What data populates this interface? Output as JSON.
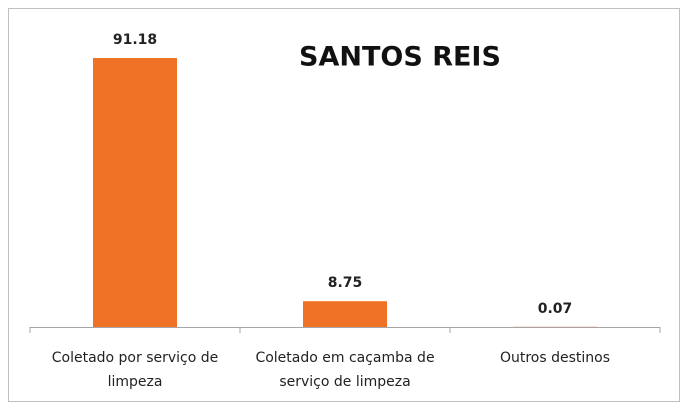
{
  "chart_data": {
    "type": "bar",
    "title": "SANTOS REIS",
    "categories": [
      "Coletado por serviço de limpeza",
      "Coletado em caçamba de serviço de limpeza",
      "Outros destinos"
    ],
    "values": [
      91.18,
      8.75,
      0.07
    ],
    "value_labels": [
      "91.18",
      "8.75",
      "0.07"
    ],
    "color": "#f07226",
    "ylim": [
      0,
      100
    ]
  }
}
